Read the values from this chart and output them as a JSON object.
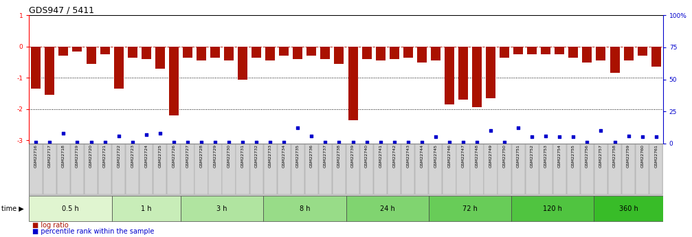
{
  "title": "GDS947 / 5411",
  "samples": [
    "GSM22716",
    "GSM22717",
    "GSM22718",
    "GSM22719",
    "GSM22720",
    "GSM22721",
    "GSM22722",
    "GSM22723",
    "GSM22724",
    "GSM22725",
    "GSM22726",
    "GSM22727",
    "GSM22728",
    "GSM22729",
    "GSM22730",
    "GSM22731",
    "GSM22732",
    "GSM22733",
    "GSM22734",
    "GSM22735",
    "GSM22736",
    "GSM22737",
    "GSM22738",
    "GSM22739",
    "GSM22740",
    "GSM22741",
    "GSM22742",
    "GSM22743",
    "GSM22744",
    "GSM22745",
    "GSM22746",
    "GSM22747",
    "GSM22748",
    "GSM22749",
    "GSM22750",
    "GSM22751",
    "GSM22752",
    "GSM22753",
    "GSM22754",
    "GSM22755",
    "GSM22756",
    "GSM22757",
    "GSM22758",
    "GSM22759",
    "GSM22760",
    "GSM22761"
  ],
  "log_ratio": [
    -1.35,
    -1.55,
    -0.3,
    -0.15,
    -0.55,
    -0.25,
    -1.35,
    -0.35,
    -0.4,
    -0.7,
    -2.2,
    -0.35,
    -0.45,
    -0.35,
    -0.45,
    -1.05,
    -0.35,
    -0.45,
    -0.3,
    -0.4,
    -0.3,
    -0.4,
    -0.55,
    -2.35,
    -0.4,
    -0.45,
    -0.4,
    -0.35,
    -0.5,
    -0.45,
    -1.85,
    -1.7,
    -1.95,
    -1.65,
    -0.35,
    -0.25,
    -0.25,
    -0.25,
    -0.25,
    -0.35,
    -0.5,
    -0.45,
    -0.85,
    -0.45,
    -0.3,
    -0.65
  ],
  "percentile_rank": [
    1,
    1,
    8,
    1,
    1,
    1,
    6,
    1,
    7,
    8,
    1,
    1,
    1,
    1,
    1,
    1,
    1,
    1,
    1,
    12,
    6,
    1,
    1,
    1,
    1,
    1,
    1,
    1,
    1,
    5,
    1,
    1,
    1,
    10,
    1,
    12,
    5,
    6,
    5,
    5,
    1,
    10,
    1,
    6,
    5,
    5
  ],
  "time_groups": [
    {
      "label": "0.5 h",
      "start": 0,
      "end": 6,
      "color": "#e8f8d8"
    },
    {
      "label": "1 h",
      "start": 6,
      "end": 11,
      "color": "#d0eebc"
    },
    {
      "label": "3 h",
      "start": 11,
      "end": 17,
      "color": "#b8e4a0"
    },
    {
      "label": "8 h",
      "start": 17,
      "end": 23,
      "color": "#a0da84"
    },
    {
      "label": "24 h",
      "start": 23,
      "end": 29,
      "color": "#88cf68"
    },
    {
      "label": "72 h",
      "start": 29,
      "end": 35,
      "color": "#70c44c"
    },
    {
      "label": "120 h",
      "start": 35,
      "end": 41,
      "color": "#58b930"
    },
    {
      "label": "360 h",
      "start": 41,
      "end": 46,
      "color": "#40ae14"
    }
  ],
  "bar_color": "#aa1100",
  "dot_color": "#0000cc",
  "ylim_left": [
    -3.1,
    1.0
  ],
  "ylim_right": [
    0,
    100
  ],
  "background_color": "#ffffff",
  "title_fontsize": 9,
  "tick_fontsize": 6.5
}
